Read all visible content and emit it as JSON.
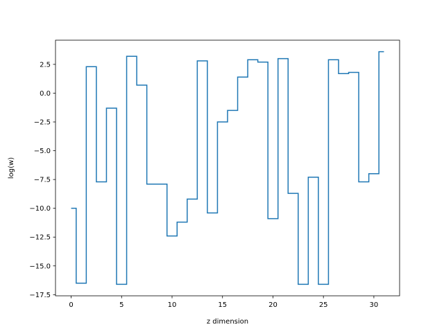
{
  "chart_data": {
    "type": "line",
    "drawstyle": "steps-mid",
    "title": "",
    "xlabel": "z dimension",
    "ylabel": "log(w)",
    "xlim": [
      -1.55,
      32.55
    ],
    "ylim": [
      -17.6,
      4.6
    ],
    "xticks": [
      0,
      5,
      10,
      15,
      20,
      25,
      30
    ],
    "xtick_labels": [
      "0",
      "5",
      "10",
      "15",
      "20",
      "25",
      "30"
    ],
    "yticks": [
      -17.5,
      -15.0,
      -12.5,
      -10.0,
      -7.5,
      -5.0,
      -2.5,
      0.0,
      2.5
    ],
    "ytick_labels": [
      "−17.5",
      "−15.0",
      "−12.5",
      "−10.0",
      "−7.5",
      "−5.0",
      "−2.5",
      "0.0",
      "2.5"
    ],
    "grid": false,
    "series": [
      {
        "color": "#1f77b4",
        "x": [
          0,
          1,
          2,
          3,
          4,
          5,
          6,
          7,
          8,
          9,
          10,
          11,
          12,
          13,
          14,
          15,
          16,
          17,
          18,
          19,
          20,
          21,
          22,
          23,
          24,
          25,
          26,
          27,
          28,
          29,
          30,
          31
        ],
        "y": [
          -10.0,
          -16.5,
          2.3,
          -7.7,
          -1.3,
          -16.6,
          3.2,
          0.7,
          -7.9,
          -7.9,
          -12.4,
          -11.2,
          -9.2,
          2.8,
          -10.4,
          -2.5,
          -1.5,
          1.4,
          2.9,
          2.7,
          -10.9,
          3.0,
          -8.7,
          -16.6,
          -7.3,
          -16.6,
          2.9,
          1.7,
          1.8,
          -7.7,
          -7.0,
          3.6
        ]
      }
    ]
  }
}
